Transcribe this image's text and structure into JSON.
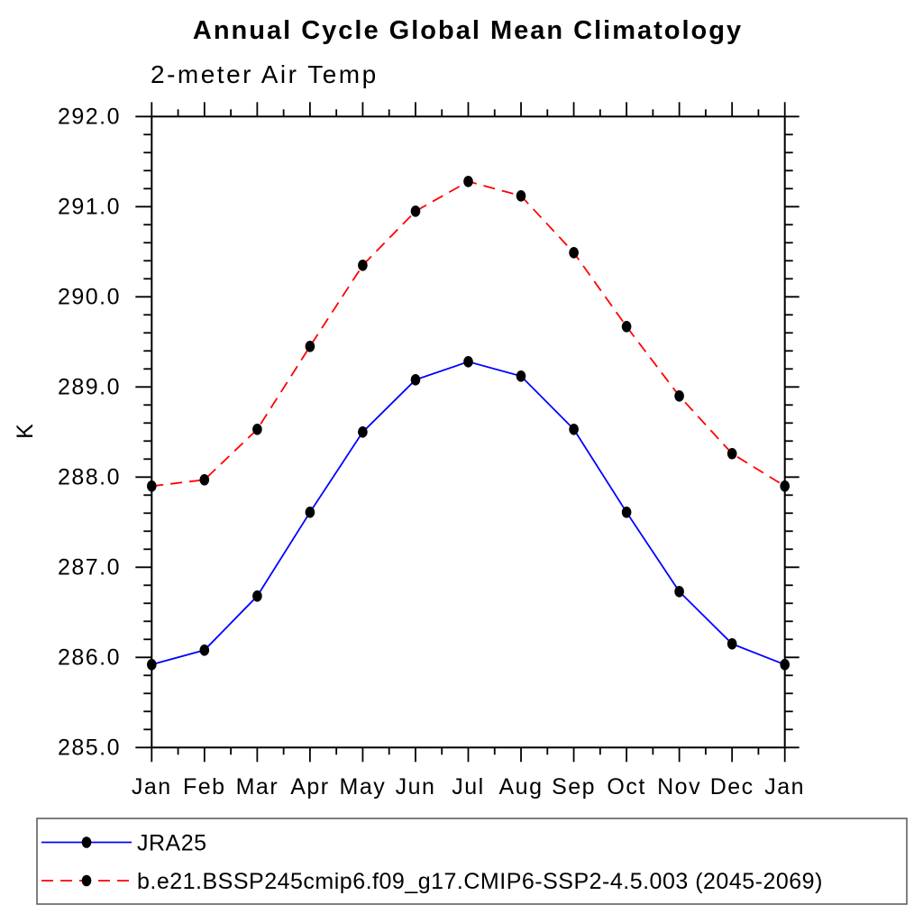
{
  "chart": {
    "title": "Annual Cycle Global Mean Climatology",
    "subtitle": "2-meter Air Temp",
    "ylabel": "K"
  },
  "chart_data": {
    "type": "line",
    "title": "Annual Cycle Global Mean Climatology",
    "subtitle": "2-meter Air Temp",
    "xlabel": "",
    "ylabel": "K",
    "x_categories": [
      "Jan",
      "Feb",
      "Mar",
      "Apr",
      "May",
      "Jun",
      "Jul",
      "Aug",
      "Sep",
      "Oct",
      "Nov",
      "Dec",
      "Jan"
    ],
    "ylim": [
      285.0,
      292.0
    ],
    "y_major_step": 1.0,
    "y_minor_step": 0.2,
    "y_tick_labels": [
      "285.0",
      "286.0",
      "287.0",
      "288.0",
      "289.0",
      "290.0",
      "291.0",
      "292.0"
    ],
    "grid": false,
    "tick_direction": "outward",
    "legend_position": "bottom-left-box",
    "frame_color": "#000000",
    "background_color": "#ffffff",
    "series": [
      {
        "name": "JRA25",
        "color": "#0000ff",
        "line_style": "solid",
        "marker": "filled-circle",
        "marker_color": "#000000",
        "values": [
          285.92,
          286.08,
          286.68,
          287.61,
          288.5,
          289.08,
          289.28,
          289.12,
          288.53,
          287.61,
          286.73,
          286.15,
          285.92
        ]
      },
      {
        "name": "b.e21.BSSP245cmip6.f09_g17.CMIP6-SSP2-4.5.003 (2045-2069)",
        "color": "#ff0000",
        "line_style": "dashed",
        "marker": "filled-circle",
        "marker_color": "#000000",
        "values": [
          287.9,
          287.97,
          288.53,
          289.45,
          290.35,
          290.95,
          291.28,
          291.12,
          290.49,
          289.67,
          288.9,
          288.26,
          287.9
        ]
      }
    ]
  }
}
